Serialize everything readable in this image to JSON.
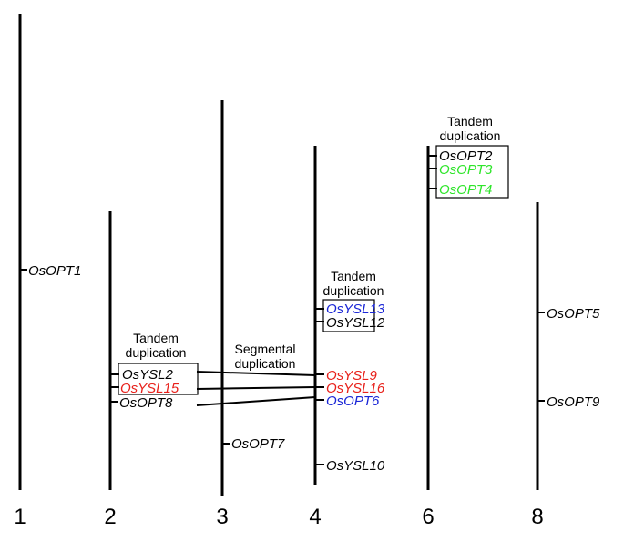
{
  "colors": {
    "black": "#000000",
    "red": "#e8201a",
    "blue": "#1a26d6",
    "green": "#2ee52a"
  },
  "chromosomes": [
    {
      "id": "chr1",
      "number": "1"
    },
    {
      "id": "chr2",
      "number": "2"
    },
    {
      "id": "chr3",
      "number": "3"
    },
    {
      "id": "chr4",
      "number": "4"
    },
    {
      "id": "chr6",
      "number": "6"
    },
    {
      "id": "chr8",
      "number": "8"
    }
  ],
  "genes": [
    {
      "id": "OsOPT1",
      "name": "OsOPT1",
      "color": "black"
    },
    {
      "id": "OsYSL2",
      "name": "OsYSL2",
      "color": "black"
    },
    {
      "id": "OsYSL15",
      "name": "OsYSL15",
      "color": "red"
    },
    {
      "id": "OsOPT8",
      "name": "OsOPT8",
      "color": "black"
    },
    {
      "id": "OsOPT7",
      "name": "OsOPT7",
      "color": "black"
    },
    {
      "id": "OsYSL13",
      "name": "OsYSL13",
      "color": "blue"
    },
    {
      "id": "OsYSL12",
      "name": "OsYSL12",
      "color": "black"
    },
    {
      "id": "OsYSL9",
      "name": "OsYSL9",
      "color": "red"
    },
    {
      "id": "OsYSL16",
      "name": "OsYSL16",
      "color": "red"
    },
    {
      "id": "OsOPT6",
      "name": "OsOPT6",
      "color": "blue"
    },
    {
      "id": "OsYSL10",
      "name": "OsYSL10",
      "color": "black"
    },
    {
      "id": "OsOPT2",
      "name": "OsOPT2",
      "color": "black"
    },
    {
      "id": "OsOPT3",
      "name": "OsOPT3",
      "color": "green"
    },
    {
      "id": "OsOPT4",
      "name": "OsOPT4",
      "color": "green"
    },
    {
      "id": "OsOPT5",
      "name": "OsOPT5",
      "color": "black"
    },
    {
      "id": "OsOPT9",
      "name": "OsOPT9",
      "color": "black"
    }
  ],
  "annotations": {
    "tandem_line1": "Tandem",
    "tandem_line2": "duplication",
    "segmental_line1": "Segmental",
    "segmental_line2": "duplication"
  }
}
